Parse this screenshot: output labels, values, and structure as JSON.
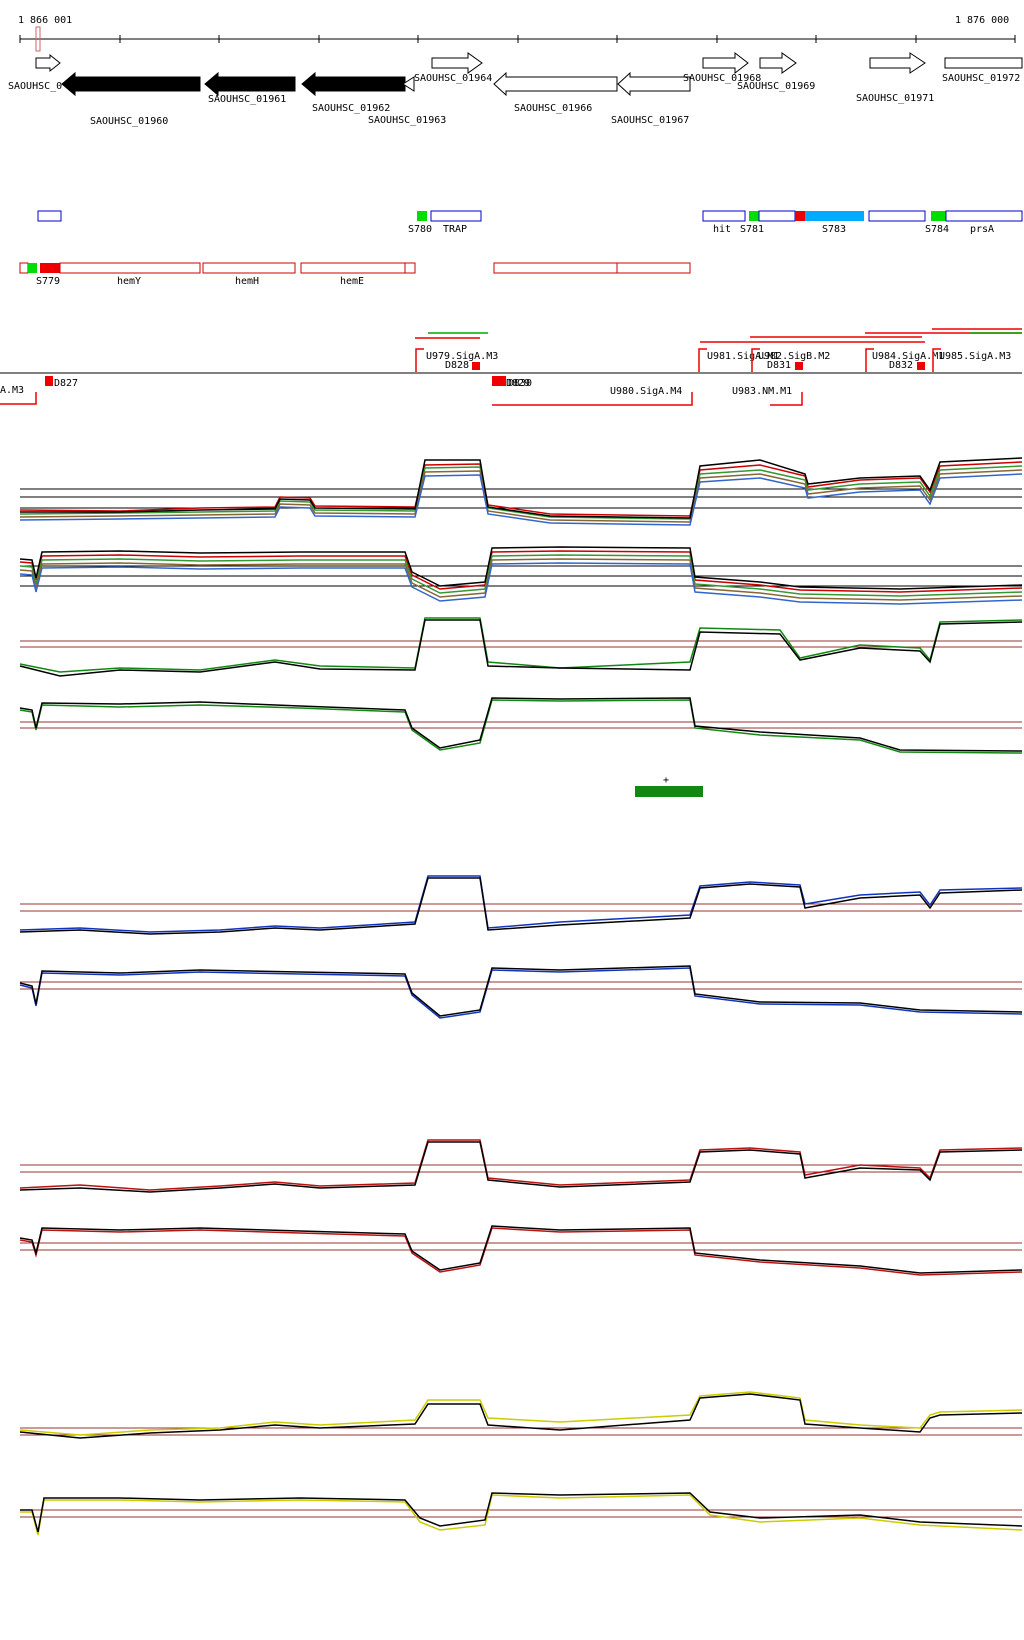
{
  "ruler": {
    "start_label": "1 866 001",
    "end_label": "1 876 000"
  },
  "genes": [
    {
      "label": "SAOUHSC_01960",
      "filled": true
    },
    {
      "label": "SAOUHSC_01961",
      "filled": true
    },
    {
      "label": "SAOUHSC_01962",
      "filled": true
    },
    {
      "label": "SAOUHSC_01963",
      "filled": false
    },
    {
      "label": "SAOUHSC_01964",
      "filled": false
    },
    {
      "label": "SAOUHSC_01966",
      "filled": false
    },
    {
      "label": "SAOUHSC_01967",
      "filled": false
    },
    {
      "label": "SAOUHSC_01968",
      "filled": false
    },
    {
      "label": "SAOUHSC_01969",
      "filled": false
    },
    {
      "label": "SAOUHSC_01971",
      "filled": false
    },
    {
      "label": "SAOUHSC_01972",
      "filled": false
    }
  ],
  "gene_left_label": "SAOUHSC_0",
  "plus_features": [
    "S780",
    "TRAP",
    "hit",
    "S781",
    "S783",
    "S784",
    "prsA"
  ],
  "minus_features": [
    "S779",
    "hemY",
    "hemH",
    "hemE"
  ],
  "promoters_top": [
    "U979.SigA.M3",
    "D828",
    "U981.SigA.M1",
    "U982.SigB.M2",
    "D831",
    "U984.SigA.M1",
    "D832",
    "U985.SigA.M3"
  ],
  "promoters_bottom": [
    "A.M3",
    "D827",
    "D829",
    "D830",
    "U980.SigA.M4",
    "U983.NM.M1"
  ],
  "strand_marker": "+",
  "colors": {
    "gene_fill": "#000000",
    "plus_box": "#0000cc",
    "minus_box": "#cc0000",
    "green_mark": "#00dd00",
    "red_mark": "#ee0000",
    "blue_mark": "#00aaff",
    "track_green": "#118811",
    "track_blue": "#1133bb",
    "track_red": "#bb1111",
    "track_yellow": "#cccc00",
    "baseline": "#993333",
    "bar": "#118811"
  }
}
